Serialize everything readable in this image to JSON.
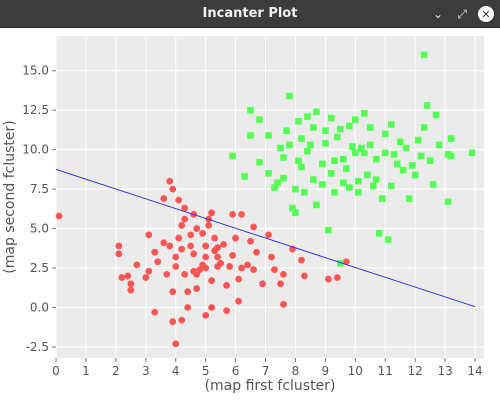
{
  "window": {
    "title": "Incanter Plot",
    "controls": {
      "minimize_glyph": "⌄",
      "maximize_glyph": "⤢",
      "close_glyph": "✕"
    }
  },
  "chart_data": {
    "type": "scatter",
    "xlabel": "(map first fcluster)",
    "ylabel": "(map second fcluster)",
    "xlim": [
      0,
      14.3
    ],
    "ylim": [
      -3.2,
      17.2
    ],
    "xticks": [
      0,
      1,
      2,
      3,
      4,
      5,
      6,
      7,
      8,
      9,
      10,
      11,
      12,
      13,
      14
    ],
    "yticks": [
      -2.5,
      0.0,
      2.5,
      5.0,
      7.5,
      10.0,
      12.5,
      15.0
    ],
    "ytick_labels": [
      "-2.5",
      "0.0",
      "2.5",
      "5.0",
      "7.5",
      "10.0",
      "12.5",
      "15.0"
    ],
    "grid": true,
    "series": [
      {
        "marker": "circle",
        "color": "#ff5555",
        "points": [
          [
            0.1,
            5.8
          ],
          [
            2.1,
            3.9
          ],
          [
            2.1,
            3.4
          ],
          [
            2.2,
            1.9
          ],
          [
            2.4,
            2.0
          ],
          [
            2.5,
            1.5
          ],
          [
            2.5,
            1.1
          ],
          [
            2.7,
            2.7
          ],
          [
            3.0,
            1.9
          ],
          [
            3.1,
            2.3
          ],
          [
            3.1,
            4.6
          ],
          [
            3.3,
            -0.3
          ],
          [
            3.3,
            3.5
          ],
          [
            3.4,
            2.9
          ],
          [
            3.6,
            4.1
          ],
          [
            3.6,
            6.9
          ],
          [
            3.8,
            3.9
          ],
          [
            3.8,
            8.0
          ],
          [
            3.7,
            2.1
          ],
          [
            3.9,
            1.0
          ],
          [
            3.9,
            7.5
          ],
          [
            4.0,
            2.6
          ],
          [
            4.0,
            3.2
          ],
          [
            4.1,
            4.4
          ],
          [
            4.1,
            6.8
          ],
          [
            4.2,
            3.7
          ],
          [
            4.2,
            5.2
          ],
          [
            4.3,
            6.3
          ],
          [
            4.3,
            5.6
          ],
          [
            4.3,
            2.1
          ],
          [
            4.4,
            1.0
          ],
          [
            4.4,
            0.0
          ],
          [
            4.5,
            4.6
          ],
          [
            4.5,
            3.9
          ],
          [
            4.6,
            3.4
          ],
          [
            4.6,
            2.3
          ],
          [
            4.6,
            5.9
          ],
          [
            4.7,
            5.0
          ],
          [
            4.7,
            2.1
          ],
          [
            4.8,
            2.4
          ],
          [
            4.9,
            2.7
          ],
          [
            4.9,
            4.7
          ],
          [
            5.0,
            3.2
          ],
          [
            5.0,
            3.9
          ],
          [
            5.0,
            2.5
          ],
          [
            5.1,
            5.2
          ],
          [
            5.1,
            5.6
          ],
          [
            5.2,
            6.0
          ],
          [
            5.2,
            1.7
          ],
          [
            5.3,
            3.6
          ],
          [
            5.3,
            4.4
          ],
          [
            5.4,
            3.2
          ],
          [
            5.4,
            2.6
          ],
          [
            5.4,
            3.8
          ],
          [
            5.5,
            2.8
          ],
          [
            5.6,
            4.0
          ],
          [
            5.7,
            1.4
          ],
          [
            5.8,
            2.6
          ],
          [
            5.9,
            3.3
          ],
          [
            5.9,
            5.9
          ],
          [
            6.0,
            4.4
          ],
          [
            6.1,
            1.8
          ],
          [
            6.2,
            2.5
          ],
          [
            6.2,
            5.9
          ],
          [
            6.4,
            2.7
          ],
          [
            6.5,
            4.2
          ],
          [
            6.6,
            2.4
          ],
          [
            6.6,
            5.1
          ],
          [
            6.7,
            3.5
          ],
          [
            6.9,
            1.5
          ],
          [
            7.1,
            4.6
          ],
          [
            7.2,
            3.2
          ],
          [
            7.3,
            2.4
          ],
          [
            7.5,
            1.5
          ],
          [
            7.6,
            2.1
          ],
          [
            7.6,
            0.2
          ],
          [
            7.9,
            3.7
          ],
          [
            8.2,
            3.0
          ],
          [
            8.3,
            2.0
          ],
          [
            9.1,
            1.8
          ],
          [
            9.4,
            1.9
          ],
          [
            9.7,
            2.9
          ],
          [
            3.9,
            -0.9
          ],
          [
            4.0,
            -2.3
          ],
          [
            4.2,
            -0.8
          ],
          [
            5.2,
            0.0
          ],
          [
            5.7,
            -0.2
          ],
          [
            6.1,
            0.4
          ],
          [
            5.0,
            -0.5
          ],
          [
            4.7,
            1.2
          ]
        ]
      },
      {
        "marker": "square",
        "color": "#55ff55",
        "points": [
          [
            5.9,
            9.6
          ],
          [
            6.3,
            8.3
          ],
          [
            6.5,
            12.5
          ],
          [
            6.5,
            10.9
          ],
          [
            6.8,
            11.9
          ],
          [
            6.8,
            9.2
          ],
          [
            7.1,
            8.5
          ],
          [
            7.1,
            10.9
          ],
          [
            7.3,
            7.6
          ],
          [
            7.4,
            7.9
          ],
          [
            7.5,
            10.1
          ],
          [
            7.6,
            9.5
          ],
          [
            7.6,
            8.2
          ],
          [
            7.7,
            11.2
          ],
          [
            7.8,
            13.4
          ],
          [
            7.8,
            10.3
          ],
          [
            7.9,
            6.3
          ],
          [
            8.0,
            7.5
          ],
          [
            8.0,
            6.0
          ],
          [
            8.1,
            9.3
          ],
          [
            8.1,
            11.8
          ],
          [
            8.2,
            10.7
          ],
          [
            8.2,
            8.9
          ],
          [
            8.3,
            7.3
          ],
          [
            8.4,
            9.9
          ],
          [
            8.4,
            12.1
          ],
          [
            8.5,
            10.3
          ],
          [
            8.6,
            8.1
          ],
          [
            8.6,
            11.4
          ],
          [
            8.7,
            12.4
          ],
          [
            8.7,
            6.5
          ],
          [
            8.9,
            7.8
          ],
          [
            8.9,
            9.1
          ],
          [
            9.0,
            10.4
          ],
          [
            9.0,
            11.2
          ],
          [
            9.1,
            4.9
          ],
          [
            9.2,
            12.0
          ],
          [
            9.2,
            8.5
          ],
          [
            9.3,
            9.3
          ],
          [
            9.3,
            7.3
          ],
          [
            9.4,
            10.8
          ],
          [
            9.5,
            11.3
          ],
          [
            9.6,
            9.4
          ],
          [
            9.6,
            7.9
          ],
          [
            9.7,
            8.8
          ],
          [
            9.8,
            7.6
          ],
          [
            9.8,
            11.5
          ],
          [
            9.9,
            10.2
          ],
          [
            10.0,
            11.9
          ],
          [
            10.0,
            9.8
          ],
          [
            10.1,
            8.0
          ],
          [
            10.1,
            7.3
          ],
          [
            10.2,
            10.1
          ],
          [
            10.3,
            12.3
          ],
          [
            10.3,
            9.8
          ],
          [
            10.4,
            8.4
          ],
          [
            10.5,
            11.4
          ],
          [
            10.5,
            10.3
          ],
          [
            10.6,
            7.7
          ],
          [
            10.7,
            8.1
          ],
          [
            10.7,
            9.4
          ],
          [
            10.8,
            4.7
          ],
          [
            10.9,
            6.9
          ],
          [
            11.0,
            11.0
          ],
          [
            11.0,
            9.8
          ],
          [
            11.1,
            4.3
          ],
          [
            11.2,
            7.7
          ],
          [
            11.3,
            9.7
          ],
          [
            11.4,
            9.1
          ],
          [
            11.5,
            10.5
          ],
          [
            11.6,
            8.7
          ],
          [
            11.7,
            10.1
          ],
          [
            11.8,
            6.9
          ],
          [
            11.9,
            9.0
          ],
          [
            12.0,
            8.4
          ],
          [
            12.1,
            10.6
          ],
          [
            12.2,
            9.6
          ],
          [
            12.3,
            11.4
          ],
          [
            12.3,
            16.0
          ],
          [
            12.4,
            12.8
          ],
          [
            12.5,
            9.3
          ],
          [
            12.6,
            7.8
          ],
          [
            12.7,
            12.2
          ],
          [
            12.8,
            10.3
          ],
          [
            13.1,
            9.7
          ],
          [
            13.1,
            6.7
          ],
          [
            13.2,
            9.6
          ],
          [
            13.2,
            10.7
          ],
          [
            13.9,
            9.8
          ],
          [
            9.5,
            2.8
          ],
          [
            11.2,
            11.6
          ]
        ]
      }
    ],
    "regression_line": {
      "color": "#3333dd",
      "points": [
        [
          0.0,
          8.75
        ],
        [
          14.0,
          0.05
        ]
      ]
    }
  }
}
